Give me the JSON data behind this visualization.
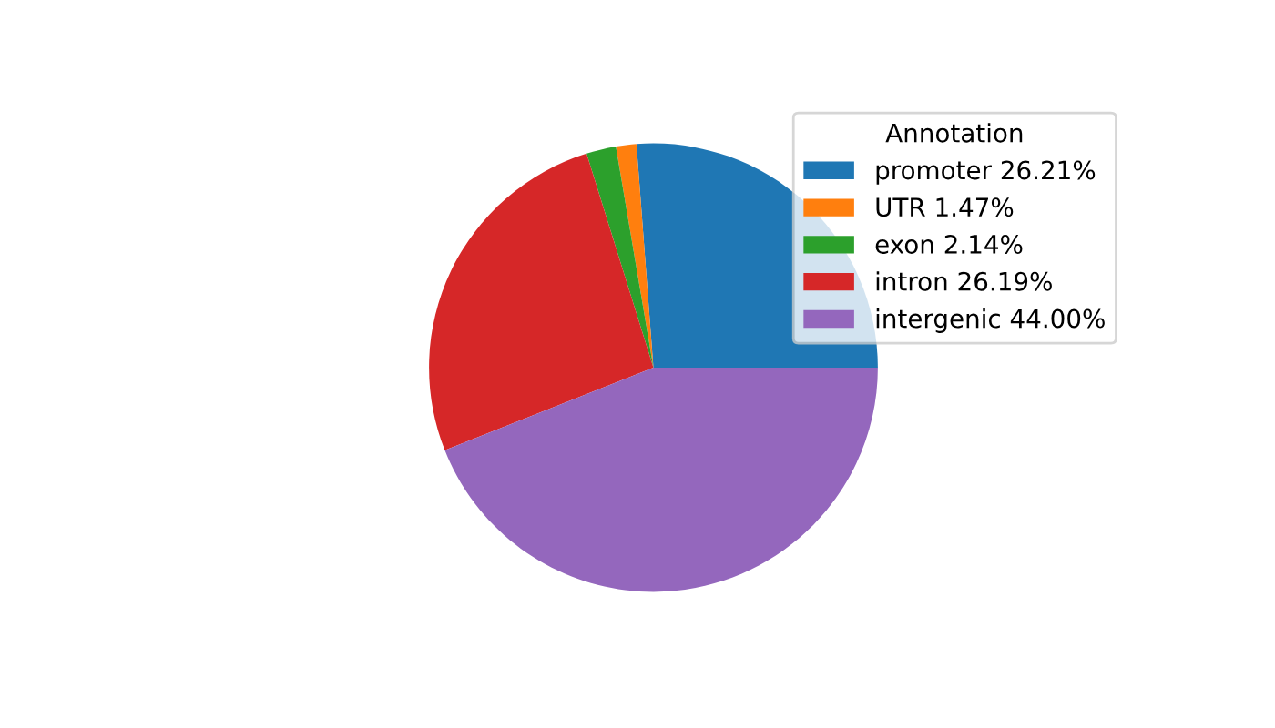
{
  "chart_data": {
    "type": "pie",
    "categories": [
      "promoter 26.21%",
      "UTR 1.47%",
      "exon 2.14%",
      "intron 26.19%",
      "intergenic 44.00%"
    ],
    "values": [
      26.21,
      1.47,
      2.14,
      26.19,
      44.0
    ],
    "colors": [
      "#1f77b4",
      "#ff7f0e",
      "#2ca02c",
      "#d62728",
      "#9467bd"
    ],
    "legend_title": "Annotation",
    "legend": "top right"
  }
}
